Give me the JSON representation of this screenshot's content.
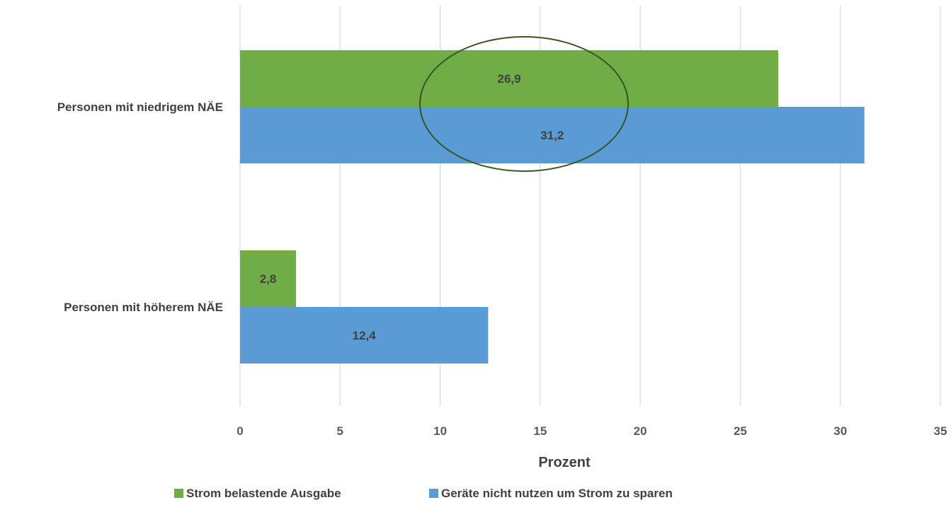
{
  "chart_data": {
    "type": "bar",
    "orientation": "horizontal",
    "categories": [
      "Personen mit niedrigem NÄE",
      "Personen mit höherem NÄE"
    ],
    "series": [
      {
        "name": "Strom belastende Ausgabe",
        "values": [
          26.9,
          2.8
        ],
        "labels": [
          "26,9",
          "2,8"
        ],
        "color": "#70AD47"
      },
      {
        "name": "Geräte nicht nutzen um Strom zu sparen",
        "values": [
          31.2,
          12.4
        ],
        "labels": [
          "31,2",
          "12,4"
        ],
        "color": "#5B9BD5"
      }
    ],
    "xlabel": "Prozent",
    "ylabel": "",
    "xlim": [
      0,
      35
    ],
    "xticks": [
      0,
      5,
      10,
      15,
      20,
      25,
      30,
      35
    ],
    "xtick_labels": [
      "0",
      "5",
      "10",
      "15",
      "20",
      "25",
      "30",
      "35"
    ],
    "grid": "vertical",
    "legend_position": "bottom",
    "annotation": {
      "shape": "ellipse",
      "color": "#375623",
      "around": "Personen mit niedrigem NÄE labels"
    }
  }
}
